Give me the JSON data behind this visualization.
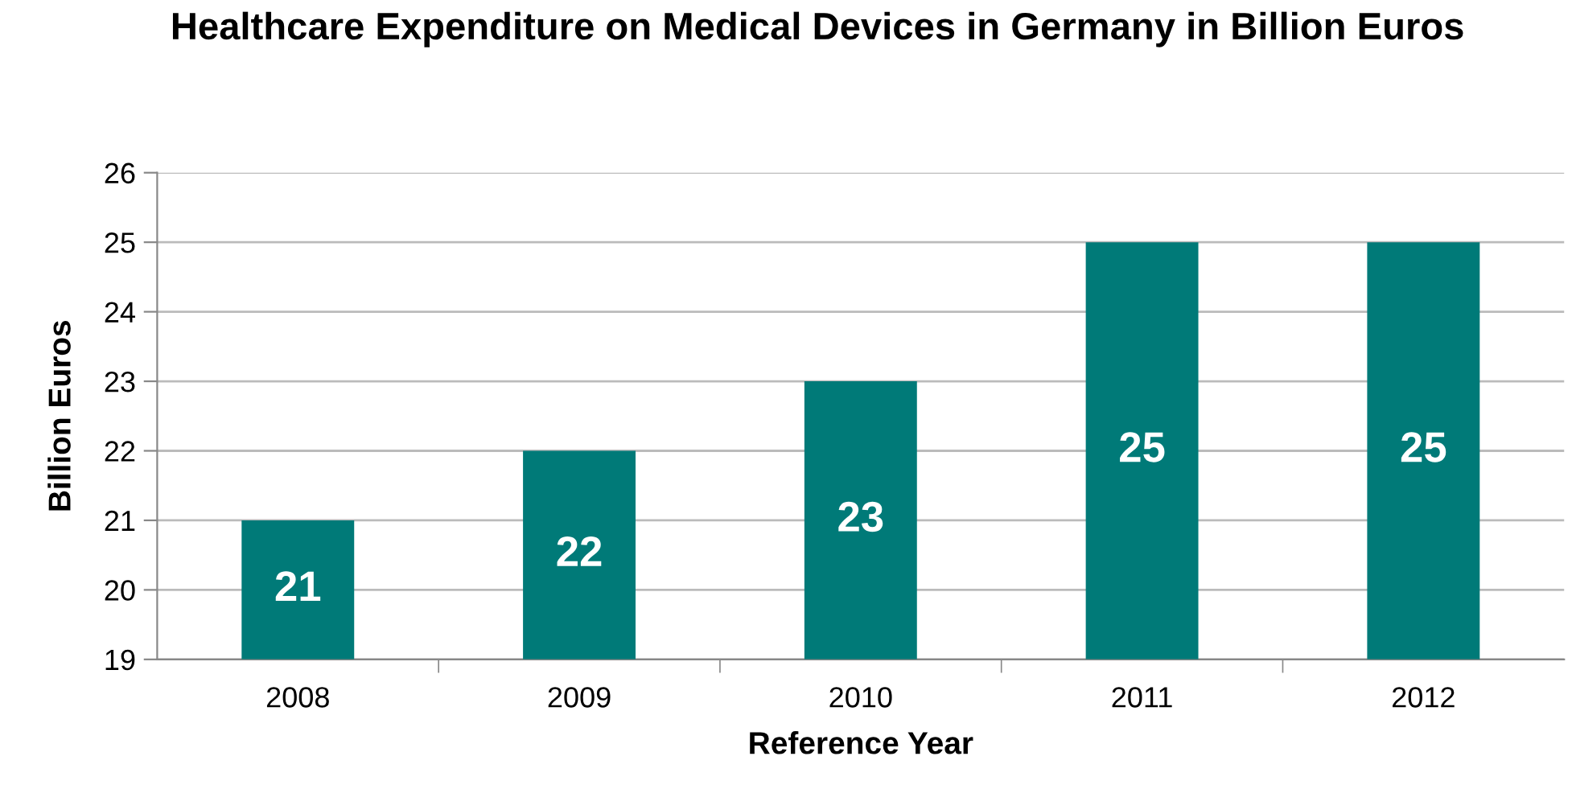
{
  "chart_data": {
    "type": "bar",
    "title": "Healthcare Expenditure on Medical Devices in Germany in Billion Euros",
    "xlabel": "Reference Year",
    "ylabel": "Billion Euros",
    "categories": [
      "2008",
      "2009",
      "2010",
      "2011",
      "2012"
    ],
    "values": [
      21,
      22,
      23,
      25,
      25
    ],
    "color": "#007a78",
    "ylim": [
      19,
      26
    ],
    "yticks": [
      19,
      20,
      21,
      22,
      23,
      24,
      25,
      26
    ],
    "grid": "y",
    "data_labels": true
  }
}
